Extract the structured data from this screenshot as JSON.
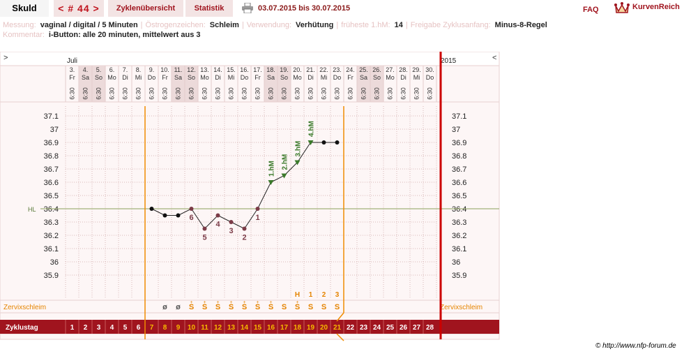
{
  "tabs": {
    "name": "Skuld",
    "cycle_nav": "< # 44 >",
    "overview": "Zyklenübersicht",
    "statistics": "Statistik",
    "period": "03.07.2015 bis 30.07.2015",
    "faq": "FAQ",
    "brand": "KurvenReich"
  },
  "info": {
    "messung_label": "Messung:",
    "messung_value": "vaginal / digital / 5 Minuten",
    "oestrogen_label": "Östrogenzeichen:",
    "oestrogen_value": "Schleim",
    "verwendung_label": "Verwendung:",
    "verwendung_value": "Verhütung",
    "frueheste_label": "früheste 1.hM:",
    "frueheste_value": "14",
    "freigabe_label": "Freigabe Zyklusanfang:",
    "freigabe_value": "Minus-8-Regel",
    "kommentar_label": "Kommentar:",
    "kommentar_value": "i-Button: alle 20 minuten, mittelwert aus 3"
  },
  "chart_data": {
    "type": "line",
    "month": "Juli",
    "year": "2015",
    "nav_left": ">",
    "nav_right": "<",
    "hl_label": "HL",
    "cervix_label": "Zervixschleim",
    "cycle_day_label": "Zyklustag",
    "time_label": "6:30",
    "dates": [
      "3.",
      "4.",
      "5.",
      "6.",
      "7.",
      "8.",
      "9.",
      "10.",
      "11.",
      "12.",
      "13.",
      "14.",
      "15.",
      "16.",
      "17.",
      "18.",
      "19.",
      "20.",
      "21.",
      "22.",
      "23.",
      "24.",
      "25.",
      "26.",
      "27.",
      "28.",
      "29.",
      "30."
    ],
    "weekdays": [
      "Fr",
      "Sa",
      "So",
      "Mo",
      "Di",
      "Mi",
      "Do",
      "Fr",
      "Sa",
      "So",
      "Mo",
      "Di",
      "Mi",
      "Do",
      "Fr",
      "Sa",
      "So",
      "Mo",
      "Di",
      "Mi",
      "Do",
      "Fr",
      "Sa",
      "So",
      "Mo",
      "Di",
      "Mi",
      "Do"
    ],
    "weekend_indices": [
      1,
      2,
      8,
      9,
      15,
      16,
      22,
      23
    ],
    "y_ticks": [
      "37.1",
      "37",
      "36.9",
      "36.8",
      "36.7",
      "36.6",
      "36.5",
      "36.4",
      "36.3",
      "36.2",
      "36.1",
      "36",
      "35.9"
    ],
    "hl_value": 36.4,
    "temperatures": [
      {
        "day": 7,
        "value": 36.4
      },
      {
        "day": 8,
        "value": 36.35
      },
      {
        "day": 9,
        "value": 36.35
      },
      {
        "day": 10,
        "value": 36.4
      },
      {
        "day": 11,
        "value": 36.25
      },
      {
        "day": 12,
        "value": 36.35
      },
      {
        "day": 13,
        "value": 36.3
      },
      {
        "day": 14,
        "value": 36.25
      },
      {
        "day": 15,
        "value": 36.4
      },
      {
        "day": 16,
        "value": 36.6
      },
      {
        "day": 17,
        "value": 36.65
      },
      {
        "day": 18,
        "value": 36.75
      },
      {
        "day": 19,
        "value": 36.9
      },
      {
        "day": 20,
        "value": 36.9
      },
      {
        "day": 21,
        "value": 36.9
      }
    ],
    "low_labels": [
      {
        "day": 10,
        "label": "6"
      },
      {
        "day": 11,
        "label": "5"
      },
      {
        "day": 12,
        "label": "4"
      },
      {
        "day": 13,
        "label": "3"
      },
      {
        "day": 14,
        "label": "2"
      },
      {
        "day": 15,
        "label": "1"
      }
    ],
    "high_labels": [
      {
        "day": 16,
        "label": "1.hM"
      },
      {
        "day": 17,
        "label": "2.hM"
      },
      {
        "day": 18,
        "label": "3.hM"
      },
      {
        "day": 19,
        "label": "4.hM"
      }
    ],
    "cervix": [
      {
        "day": 8,
        "symbol": "ø"
      },
      {
        "day": 9,
        "symbol": "ø"
      },
      {
        "day": 10,
        "symbol": "S+"
      },
      {
        "day": 11,
        "symbol": "S+"
      },
      {
        "day": 12,
        "symbol": "S+"
      },
      {
        "day": 13,
        "symbol": "S+"
      },
      {
        "day": 14,
        "symbol": "S+"
      },
      {
        "day": 15,
        "symbol": "S+"
      },
      {
        "day": 16,
        "symbol": "S+"
      },
      {
        "day": 17,
        "symbol": "S"
      },
      {
        "day": 18,
        "symbol": "S+"
      },
      {
        "day": 19,
        "symbol": "S"
      },
      {
        "day": 20,
        "symbol": "S"
      },
      {
        "day": 21,
        "symbol": "S"
      }
    ],
    "cervix_markers": [
      {
        "day": 18,
        "label": "H"
      },
      {
        "day": 19,
        "label": "1"
      },
      {
        "day": 20,
        "label": "2"
      },
      {
        "day": 21,
        "label": "3"
      }
    ],
    "cycle_days": [
      "1",
      "2",
      "3",
      "4",
      "5",
      "6",
      "7",
      "8",
      "9",
      "10",
      "11",
      "12",
      "13",
      "14",
      "15",
      "16",
      "17",
      "18",
      "19",
      "20",
      "21",
      "22",
      "23",
      "24",
      "25",
      "26",
      "27",
      "28"
    ],
    "fertile_start_day": 7,
    "fertile_end_day": 21
  },
  "footer": "© http://www.nfp-forum.de",
  "colors": {
    "brand": "#a0141e",
    "orange": "#f08c00",
    "green": "#3a7a2a",
    "low": "#7b3b47",
    "grid": "#e8d0d0"
  }
}
